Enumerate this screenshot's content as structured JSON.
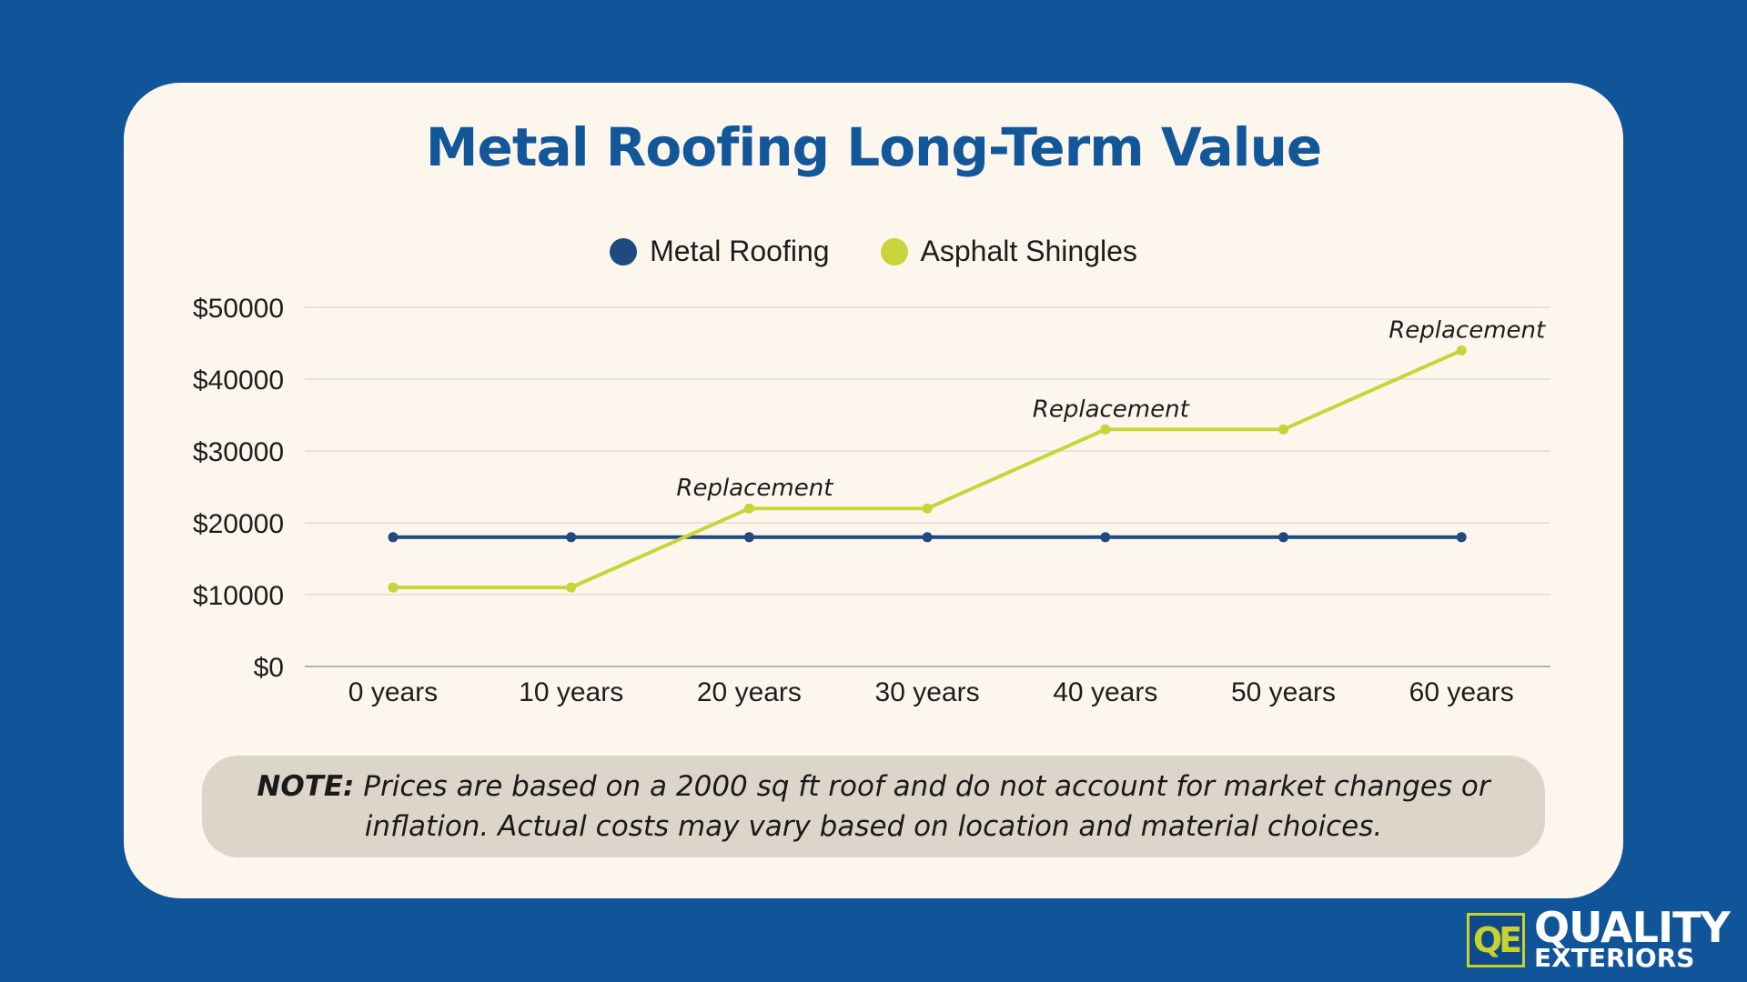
{
  "title": "Metal Roofing Long-Term Value",
  "legend": [
    {
      "label": "Metal Roofing",
      "color": "#1e4a7e"
    },
    {
      "label": "Asphalt Shingles",
      "color": "#c9d43a"
    }
  ],
  "note": {
    "bold": "NOTE:",
    "text": " Prices are based on a 2000 sq ft roof and do not account for market changes or inflation. Actual costs may vary based on location and material choices."
  },
  "logo": {
    "mark": "QE",
    "line1": "QUALITY",
    "line2": "EXTERIORS"
  },
  "chart_data": {
    "type": "line",
    "title": "Metal Roofing Long-Term Value",
    "xlabel": "",
    "ylabel": "",
    "categories": [
      "0 years",
      "10 years",
      "20 years",
      "30 years",
      "40 years",
      "50 years",
      "60 years"
    ],
    "y_ticks": [
      "$0",
      "$10000",
      "$20000",
      "$30000",
      "$40000",
      "$50000"
    ],
    "ylim": [
      0,
      50000
    ],
    "grid": true,
    "legend_position": "top-center",
    "series": [
      {
        "name": "Metal Roofing",
        "color": "#1e4a7e",
        "values": [
          18000,
          18000,
          18000,
          18000,
          18000,
          18000,
          18000
        ]
      },
      {
        "name": "Asphalt Shingles",
        "color": "#c9d43a",
        "values": [
          11000,
          11000,
          22000,
          22000,
          33000,
          33000,
          44000
        ]
      }
    ],
    "annotations": [
      {
        "text": "Replacement",
        "series": 1,
        "index": 2
      },
      {
        "text": "Replacement",
        "series": 1,
        "index": 4
      },
      {
        "text": "Replacement",
        "series": 1,
        "index": 6
      }
    ]
  }
}
